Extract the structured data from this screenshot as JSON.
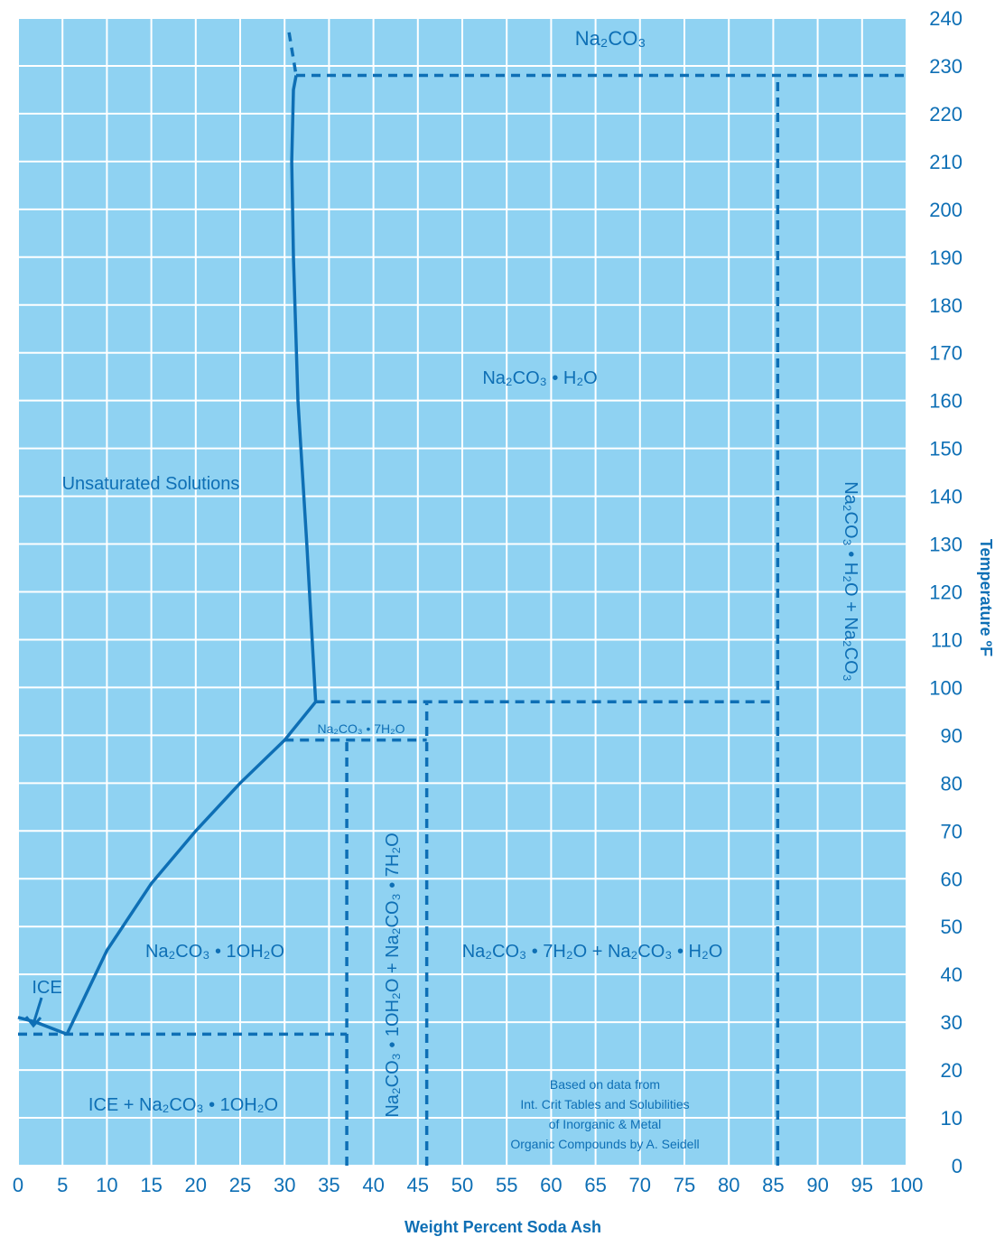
{
  "chart_data": {
    "type": "line",
    "title": "",
    "xlabel": "Weight Percent Soda Ash",
    "ylabel": "Temperature ºF",
    "xlim": [
      0,
      100
    ],
    "ylim": [
      0,
      240
    ],
    "grid": true,
    "y_axis_side": "right",
    "x_ticks": [
      "0",
      "5",
      "10",
      "15",
      "20",
      "25",
      "30",
      "35",
      "40",
      "45",
      "50",
      "55",
      "60",
      "65",
      "70",
      "75",
      "80",
      "85",
      "90",
      "95",
      "100"
    ],
    "y_ticks": [
      "0",
      "10",
      "20",
      "30",
      "40",
      "50",
      "60",
      "70",
      "80",
      "90",
      "100",
      "110",
      "120",
      "130",
      "140",
      "150",
      "160",
      "170",
      "180",
      "190",
      "200",
      "210",
      "220",
      "230",
      "240"
    ],
    "colors": {
      "background": "#8fd2f2",
      "grid": "#ffffff",
      "line": "#0e6fb5",
      "text": "#0e6fb5"
    },
    "solubility_curve": {
      "x": [
        5.5,
        10,
        15,
        20,
        25,
        30,
        33.5,
        32.5,
        31.5,
        31,
        30.8,
        31,
        31.3
      ],
      "y": [
        27.5,
        45,
        59,
        70,
        80,
        89,
        97,
        130,
        160,
        190,
        210,
        225,
        228
      ]
    },
    "ice_curve": {
      "x": [
        0,
        2,
        5.5
      ],
      "y": [
        31,
        30,
        27.5
      ]
    },
    "dashed_lines": [
      {
        "x": [
          30.5,
          31.3
        ],
        "y": [
          237,
          228
        ]
      },
      {
        "x": [
          31.3,
          100
        ],
        "y": [
          228,
          228
        ]
      },
      {
        "x": [
          85.5,
          85.5
        ],
        "y": [
          0,
          228
        ]
      },
      {
        "x": [
          33.5,
          85.5
        ],
        "y": [
          97,
          97
        ]
      },
      {
        "x": [
          46,
          46
        ],
        "y": [
          0,
          97
        ]
      },
      {
        "x": [
          30,
          46
        ],
        "y": [
          89,
          89
        ]
      },
      {
        "x": [
          37,
          37
        ],
        "y": [
          0,
          89
        ]
      },
      {
        "x": [
          0,
          37
        ],
        "y": [
          27.5,
          27.5
        ]
      }
    ],
    "regions": {
      "na2co3": "Na₂CO₃",
      "monohydrate": "Na₂CO₃ • H₂O",
      "unsaturated": "Unsaturated Solutions",
      "mono_plus_anhydrous": "Na₂CO₃ • H₂O + Na₂CO₃",
      "heptahydrate": "Na₂CO₃ • 7H₂O",
      "deca_plus_hepta": "Na₂CO₃ • 1OH₂O + Na₂CO₃ • 7H₂O",
      "decahydrate": "Na₂CO₃ • 1OH₂O",
      "hepta_plus_mono": "Na₂CO₃ • 7H₂O + Na₂CO₃ • H₂O",
      "ice": "ICE",
      "ice_plus_deca": "ICE + Na₂CO₃ • 1OH₂O"
    },
    "source_note": [
      "Based on data from",
      "Int. Crit Tables and Solubilities",
      "of Inorganic & Metal",
      "Organic Compounds by A. Seidell"
    ]
  }
}
